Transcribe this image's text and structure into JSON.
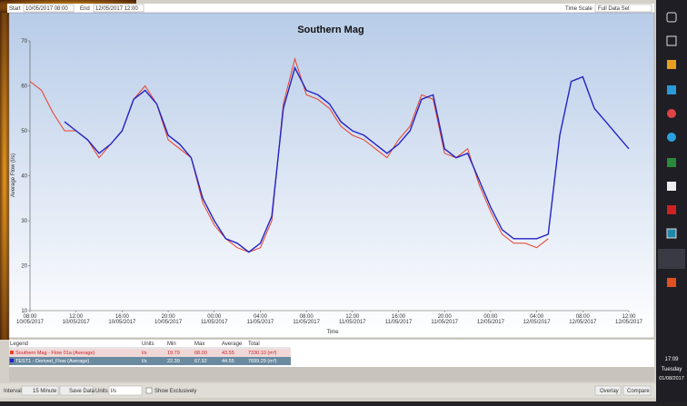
{
  "toolbar": {
    "start_label": "Start",
    "start_value": "10/05/2017 08:00",
    "end_label": "End",
    "end_value": "12/05/2017 12:00",
    "scale_label": "Time Scale",
    "scale_value": "Full Data Set"
  },
  "chart_data": {
    "type": "line",
    "title": "Southern Mag",
    "x_label": "Time",
    "y_label": "Average Flow (l/s)",
    "x": [
      0,
      1,
      2,
      3,
      4,
      5,
      6,
      7,
      8,
      9,
      10,
      11,
      12,
      13,
      14,
      15,
      16,
      17,
      18,
      19,
      20,
      21,
      22,
      23,
      24,
      25,
      26,
      27,
      28,
      29,
      30,
      31,
      32,
      33,
      34,
      35,
      36,
      37,
      38,
      39,
      40,
      41,
      42,
      43,
      44,
      45,
      46,
      47,
      48,
      49,
      50,
      51,
      52
    ],
    "xlim": [
      0,
      52
    ],
    "ylim": [
      10,
      70
    ],
    "yticks": [
      10,
      20,
      30,
      40,
      50,
      60,
      70
    ],
    "grid": false,
    "xticks": [
      {
        "value": 0,
        "label": "08:00",
        "date": "10/05/2017"
      },
      {
        "value": 4,
        "label": "12:00",
        "date": "10/05/2017"
      },
      {
        "value": 8,
        "label": "16:00",
        "date": "10/05/2017"
      },
      {
        "value": 12,
        "label": "20:00",
        "date": "10/05/2017"
      },
      {
        "value": 16,
        "label": "00:00",
        "date": "11/05/2017"
      },
      {
        "value": 20,
        "label": "04:00",
        "date": "11/05/2017"
      },
      {
        "value": 24,
        "label": "08:00",
        "date": "11/05/2017"
      },
      {
        "value": 28,
        "label": "12:00",
        "date": "11/05/2017"
      },
      {
        "value": 32,
        "label": "16:00",
        "date": "11/05/2017"
      },
      {
        "value": 36,
        "label": "20:00",
        "date": "11/05/2017"
      },
      {
        "value": 40,
        "label": "00:00",
        "date": "12/05/2017"
      },
      {
        "value": 44,
        "label": "04:00",
        "date": "12/05/2017"
      },
      {
        "value": 48,
        "label": "08:00",
        "date": "12/05/2017"
      },
      {
        "value": 52,
        "label": "12:00",
        "date": "12/05/2017"
      }
    ],
    "series": [
      {
        "name": "Southern Mag - Flow 01a (Average)",
        "color": "#e8402a",
        "values": [
          61,
          59,
          54,
          50,
          50,
          48,
          44,
          47,
          50,
          57,
          60,
          56,
          48,
          46,
          44,
          34,
          29,
          26,
          24,
          23,
          24,
          30,
          56,
          66,
          58,
          57,
          55,
          51,
          49,
          48,
          46,
          44,
          48,
          51,
          58,
          57,
          45,
          44,
          46,
          38,
          32,
          27,
          25,
          25,
          24,
          26,
          null,
          null,
          null,
          null,
          null,
          null,
          null
        ]
      },
      {
        "name": "TEST1 - Derived_Flow (Average)",
        "color": "#2323c8",
        "values": [
          null,
          null,
          null,
          52,
          50,
          48,
          45,
          47,
          50,
          57,
          59,
          56,
          49,
          47,
          44,
          35,
          30,
          26,
          25,
          23,
          25,
          31,
          55,
          64,
          59,
          58,
          56,
          52,
          50,
          49,
          47,
          45,
          47,
          50,
          57,
          58,
          46,
          44,
          45,
          39,
          33,
          28,
          26,
          26,
          26,
          27,
          49,
          61,
          62,
          55,
          52,
          49,
          46
        ]
      }
    ]
  },
  "legend_table": {
    "headers": [
      "Legend",
      "Units",
      "Min",
      "Max",
      "Average",
      "Total"
    ],
    "rows": [
      [
        "Southern Mag - Flow 01a (Average)",
        "l/s",
        "19.79",
        "68.00",
        "43.55",
        "7330.10 (m³)"
      ],
      [
        "TEST1 - Derived_Flow (Average)",
        "l/s",
        "22.39",
        "67.92",
        "44.55",
        "7699.29 (m³)"
      ]
    ]
  },
  "bottom_bar": {
    "interval_label": "Interval",
    "interval_value": "15 Minute",
    "save": "Save Data",
    "units_label": "Units",
    "units_value": "l/s",
    "exclusive": "Show Exclusively",
    "overlay": "Overlay",
    "compare": "Compare"
  },
  "taskbar": {
    "time": "17:09",
    "day": "Tuesday",
    "date": "01/08/2017"
  }
}
